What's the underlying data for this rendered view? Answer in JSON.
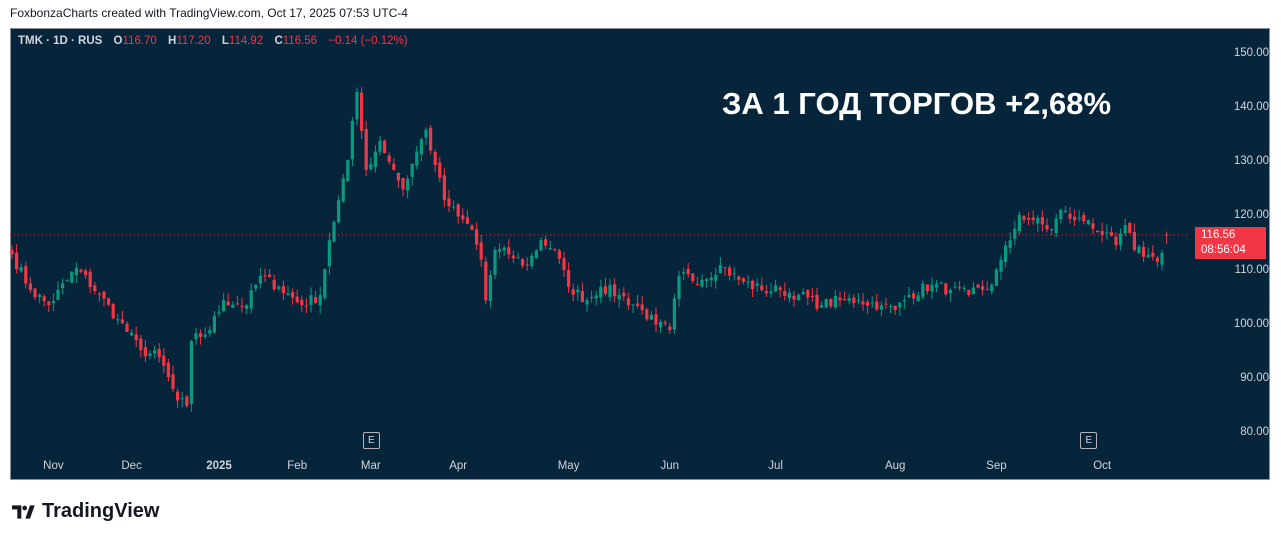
{
  "credit": "FoxbonzaCharts created with TradingView.com, Oct 17, 2025 07:53 UTC-4",
  "legend": {
    "symbol": "TMK · 1D · RUS",
    "o_label": "O",
    "o": "116.70",
    "h_label": "H",
    "h": "117.20",
    "l_label": "L",
    "l": "114.92",
    "c_label": "C",
    "c": "116.56",
    "change": "−0.14 (−0.12%)"
  },
  "headline": "ЗА 1 ГОД ТОРГОВ +2,68%",
  "last_price": {
    "price": "116.56",
    "countdown": "08:56:04"
  },
  "earnings_marker": "E",
  "logo": "TradingView",
  "colors": {
    "up": "#089981",
    "down": "#f23645",
    "bg": "#07253a"
  },
  "chart_data": {
    "type": "candlestick",
    "title": "TMK · 1D · RUS",
    "ylim": [
      78,
      152
    ],
    "y_ticks": [
      "150.00",
      "140.00",
      "130.00",
      "120.00",
      "110.00",
      "100.00",
      "90.00",
      "80.00"
    ],
    "x_ticks": [
      {
        "label": "Nov",
        "day": 9
      },
      {
        "label": "Dec",
        "day": 26
      },
      {
        "label": "2025",
        "day": 45,
        "bold": true
      },
      {
        "label": "Feb",
        "day": 62
      },
      {
        "label": "Mar",
        "day": 78
      },
      {
        "label": "Apr",
        "day": 97
      },
      {
        "label": "May",
        "day": 121
      },
      {
        "label": "Jun",
        "day": 143
      },
      {
        "label": "Jul",
        "day": 166
      },
      {
        "label": "Aug",
        "day": 192
      },
      {
        "label": "Sep",
        "day": 214
      },
      {
        "label": "Oct",
        "day": 237
      }
    ],
    "days": 252,
    "close_anchors": [
      [
        0,
        113
      ],
      [
        4,
        106.4
      ],
      [
        8,
        103.6
      ],
      [
        14,
        110.5
      ],
      [
        19,
        105.5
      ],
      [
        23,
        101
      ],
      [
        28,
        95.3
      ],
      [
        32,
        94
      ],
      [
        36,
        86
      ],
      [
        38,
        85
      ],
      [
        39,
        97
      ],
      [
        43,
        99
      ],
      [
        46,
        104.5
      ],
      [
        51,
        103.6
      ],
      [
        54,
        109
      ],
      [
        58,
        107
      ],
      [
        63,
        103.6
      ],
      [
        67,
        105.5
      ],
      [
        69,
        115.6
      ],
      [
        71,
        123
      ],
      [
        73,
        130.4
      ],
      [
        75,
        143
      ],
      [
        77,
        128.6
      ],
      [
        80,
        134
      ],
      [
        83,
        128.6
      ],
      [
        85,
        125
      ],
      [
        88,
        132
      ],
      [
        90,
        136
      ],
      [
        92,
        129.5
      ],
      [
        94,
        123
      ],
      [
        97,
        120
      ],
      [
        100,
        117.5
      ],
      [
        102,
        112
      ],
      [
        103,
        104.5
      ],
      [
        105,
        113.8
      ],
      [
        108,
        113
      ],
      [
        112,
        111
      ],
      [
        115,
        115.6
      ],
      [
        118,
        113.8
      ],
      [
        121,
        107
      ],
      [
        125,
        104.5
      ],
      [
        128,
        107
      ],
      [
        132,
        105.5
      ],
      [
        137,
        102.7
      ],
      [
        140,
        100
      ],
      [
        143,
        99
      ],
      [
        145,
        109
      ],
      [
        150,
        108.3
      ],
      [
        154,
        111
      ],
      [
        158,
        108.3
      ],
      [
        163,
        106.4
      ],
      [
        167,
        106.4
      ],
      [
        171,
        105.5
      ],
      [
        176,
        103.6
      ],
      [
        180,
        104.5
      ],
      [
        184,
        104.5
      ],
      [
        189,
        103.6
      ],
      [
        192,
        102.7
      ],
      [
        195,
        105.5
      ],
      [
        200,
        107.4
      ],
      [
        204,
        106.4
      ],
      [
        208,
        105.5
      ],
      [
        213,
        107.4
      ],
      [
        215,
        112
      ],
      [
        217,
        115.6
      ],
      [
        219,
        120.3
      ],
      [
        222,
        119.3
      ],
      [
        226,
        117.5
      ],
      [
        228,
        121.2
      ],
      [
        231,
        119.3
      ],
      [
        234,
        119.3
      ],
      [
        237,
        116.6
      ],
      [
        240,
        114.7
      ],
      [
        242,
        118.4
      ],
      [
        244,
        113.8
      ],
      [
        247,
        112.9
      ],
      [
        249,
        111.6
      ],
      [
        251,
        116.56
      ]
    ],
    "last_candle": {
      "o": 116.7,
      "h": 117.2,
      "l": 114.92,
      "c": 116.56
    },
    "earnings_days": [
      78,
      234
    ]
  }
}
